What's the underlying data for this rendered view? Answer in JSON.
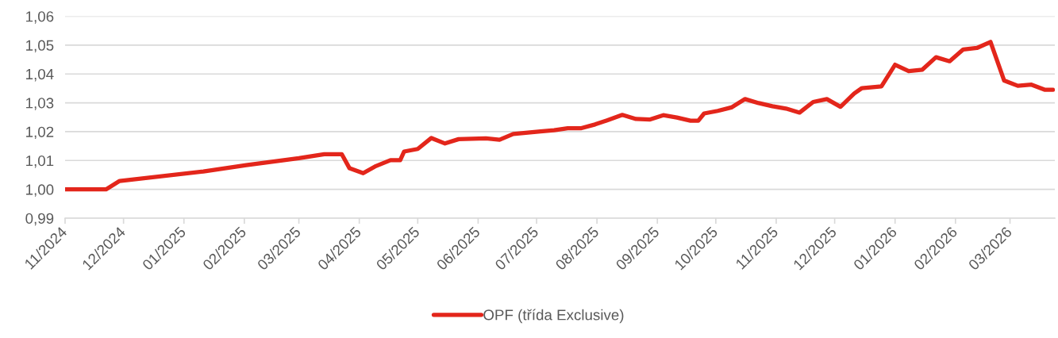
{
  "chart_data": {
    "type": "line",
    "x": [
      "2024-11-01",
      "2024-11-22",
      "2024-11-29",
      "2025-01-11",
      "2025-02-02",
      "2025-03-01",
      "2025-03-14",
      "2025-03-23",
      "2025-03-27",
      "2025-04-03",
      "2025-04-09",
      "2025-04-17",
      "2025-04-22",
      "2025-04-24",
      "2025-05-01",
      "2025-05-08",
      "2025-05-15",
      "2025-05-22",
      "2025-06-05",
      "2025-06-12",
      "2025-06-19",
      "2025-07-03",
      "2025-07-10",
      "2025-07-17",
      "2025-07-24",
      "2025-07-31",
      "2025-08-07",
      "2025-08-14",
      "2025-08-21",
      "2025-08-28",
      "2025-09-04",
      "2025-09-11",
      "2025-09-18",
      "2025-09-22",
      "2025-09-25",
      "2025-10-02",
      "2025-10-09",
      "2025-10-16",
      "2025-10-23",
      "2025-10-30",
      "2025-11-06",
      "2025-11-13",
      "2025-11-20",
      "2025-11-27",
      "2025-12-04",
      "2025-12-11",
      "2025-12-15",
      "2025-12-25",
      "2026-01-01",
      "2026-01-08",
      "2026-01-15",
      "2026-01-22",
      "2026-01-29",
      "2026-02-05",
      "2026-02-12",
      "2026-02-19",
      "2026-02-26",
      "2026-03-05",
      "2026-03-12",
      "2026-03-19",
      "2026-03-23"
    ],
    "series": [
      {
        "name": "OPF (třída Exclusive)",
        "color": "#e3261b",
        "values": [
          1.0,
          1.0,
          1.0029,
          1.0062,
          1.0084,
          1.0108,
          1.0122,
          1.0122,
          1.0073,
          1.0056,
          1.0079,
          1.0101,
          1.0101,
          1.0131,
          1.014,
          1.0178,
          1.0159,
          1.0174,
          1.0177,
          1.0172,
          1.0192,
          1.0201,
          1.0205,
          1.0212,
          1.0212,
          1.0225,
          1.0241,
          1.0258,
          1.0244,
          1.0242,
          1.0257,
          1.0249,
          1.0238,
          1.0238,
          1.0263,
          1.0272,
          1.0284,
          1.0313,
          1.0299,
          1.0288,
          1.028,
          1.0266,
          1.0303,
          1.0313,
          1.0286,
          1.0332,
          1.0351,
          1.0357,
          1.0432,
          1.041,
          1.0415,
          1.0458,
          1.0444,
          1.0485,
          1.049,
          1.0511,
          1.0377,
          1.0359,
          1.0363,
          1.0345,
          1.0345
        ]
      }
    ],
    "xlim": [
      "2024-11-01",
      "2026-03-24"
    ],
    "xticks": [
      {
        "value": "2024-11-01",
        "label": "11/2024"
      },
      {
        "value": "2024-12-01",
        "label": "12/2024"
      },
      {
        "value": "2025-01-01",
        "label": "01/2025"
      },
      {
        "value": "2025-02-01",
        "label": "02/2025"
      },
      {
        "value": "2025-03-01",
        "label": "03/2025"
      },
      {
        "value": "2025-04-01",
        "label": "04/2025"
      },
      {
        "value": "2025-05-01",
        "label": "05/2025"
      },
      {
        "value": "2025-06-01",
        "label": "06/2025"
      },
      {
        "value": "2025-07-01",
        "label": "07/2025"
      },
      {
        "value": "2025-08-01",
        "label": "08/2025"
      },
      {
        "value": "2025-09-01",
        "label": "09/2025"
      },
      {
        "value": "2025-10-01",
        "label": "10/2025"
      },
      {
        "value": "2025-11-01",
        "label": "11/2025"
      },
      {
        "value": "2025-12-01",
        "label": "12/2025"
      },
      {
        "value": "2026-01-01",
        "label": "01/2026"
      },
      {
        "value": "2026-02-01",
        "label": "02/2026"
      },
      {
        "value": "2026-03-01",
        "label": "03/2026"
      }
    ],
    "ylim": [
      0.99,
      1.06
    ],
    "yticks": [
      {
        "value": 0.99,
        "label": "0,99"
      },
      {
        "value": 1.0,
        "label": "1,00"
      },
      {
        "value": 1.01,
        "label": "1,01"
      },
      {
        "value": 1.02,
        "label": "1,02"
      },
      {
        "value": 1.03,
        "label": "1,03"
      },
      {
        "value": 1.04,
        "label": "1,04"
      },
      {
        "value": 1.05,
        "label": "1,05"
      },
      {
        "value": 1.06,
        "label": "1,06"
      }
    ],
    "grid": "y",
    "legend": "bottom",
    "marker": "none",
    "line_style": "solid"
  }
}
